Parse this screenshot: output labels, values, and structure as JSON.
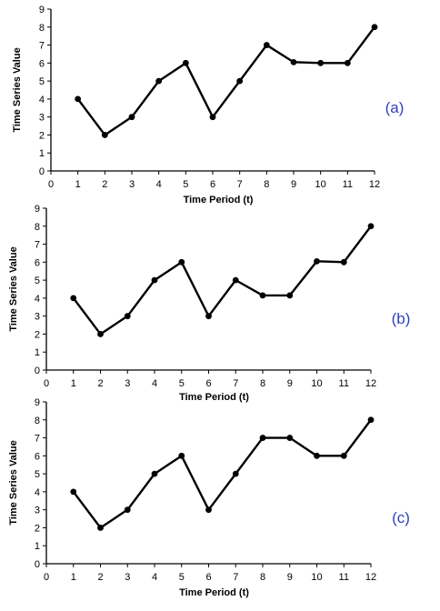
{
  "colors": {
    "line": "#000000",
    "panel_label": "#2f3fbf"
  },
  "chart_data": [
    {
      "type": "line",
      "label": "(a)",
      "xlabel": "Time Period (t)",
      "ylabel": "Time Series Value",
      "xlim": [
        0,
        12
      ],
      "ylim": [
        0,
        9
      ],
      "xticks": [
        0,
        1,
        2,
        3,
        4,
        5,
        6,
        7,
        8,
        9,
        10,
        11,
        12
      ],
      "yticks": [
        0,
        1,
        2,
        3,
        4,
        5,
        6,
        7,
        8,
        9
      ],
      "x": [
        1,
        2,
        3,
        4,
        5,
        6,
        7,
        8,
        9,
        10,
        11,
        12
      ],
      "series": [
        {
          "values": [
            4,
            2,
            3,
            5,
            6,
            3,
            5,
            7,
            6.05,
            6,
            6,
            8
          ]
        }
      ]
    },
    {
      "type": "line",
      "label": "(b)",
      "xlabel": "Time Period (t)",
      "ylabel": "Time Series Value",
      "xlim": [
        0,
        12
      ],
      "ylim": [
        0,
        9
      ],
      "xticks": [
        0,
        1,
        2,
        3,
        4,
        5,
        6,
        7,
        8,
        9,
        10,
        11,
        12
      ],
      "yticks": [
        0,
        1,
        2,
        3,
        4,
        5,
        6,
        7,
        8,
        9
      ],
      "x": [
        1,
        2,
        3,
        4,
        5,
        6,
        7,
        8,
        9,
        10,
        11,
        12
      ],
      "series": [
        {
          "values": [
            4,
            2,
            3,
            5,
            6,
            3,
            5,
            4.15,
            4.15,
            6.05,
            6,
            8
          ]
        }
      ]
    },
    {
      "type": "line",
      "label": "(c)",
      "xlabel": "Time Period (t)",
      "ylabel": "Time Series Value",
      "xlim": [
        0,
        12
      ],
      "ylim": [
        0,
        9
      ],
      "xticks": [
        0,
        1,
        2,
        3,
        4,
        5,
        6,
        7,
        8,
        9,
        10,
        11,
        12
      ],
      "yticks": [
        0,
        1,
        2,
        3,
        4,
        5,
        6,
        7,
        8,
        9
      ],
      "x": [
        1,
        2,
        3,
        4,
        5,
        6,
        7,
        8,
        9,
        10,
        11,
        12
      ],
      "series": [
        {
          "values": [
            4,
            2,
            3,
            5,
            6,
            3,
            5,
            7,
            7,
            6,
            6,
            8
          ]
        }
      ]
    }
  ]
}
